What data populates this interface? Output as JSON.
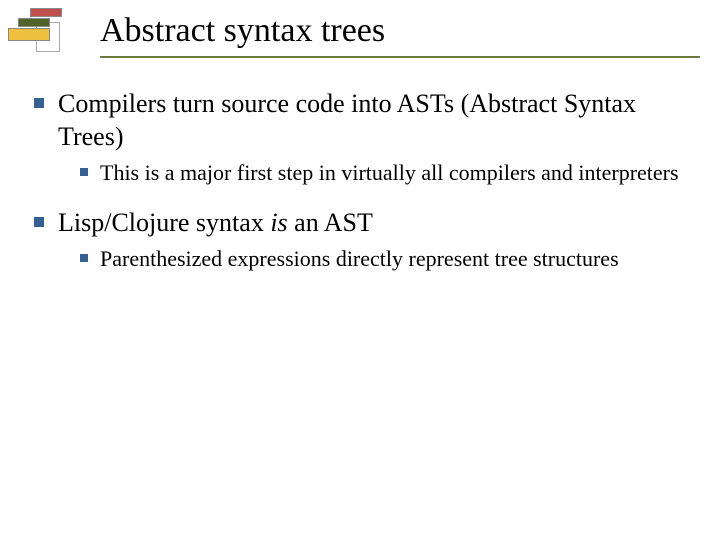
{
  "title": "Abstract syntax trees",
  "bullets": [
    {
      "text": "Compilers turn source code into ASTs (Abstract Syntax Trees)",
      "sub": [
        {
          "text": "This is a major first step in virtually all compilers and interpreters"
        }
      ]
    },
    {
      "text_parts": [
        "Lisp/Clojure syntax ",
        "is",
        " an AST"
      ],
      "italic_index": 1,
      "sub": [
        {
          "text": "Parenthesized expressions directly represent tree structures"
        }
      ]
    }
  ],
  "colors": {
    "bullet": "#376092",
    "rule": "#6b7b3a"
  }
}
